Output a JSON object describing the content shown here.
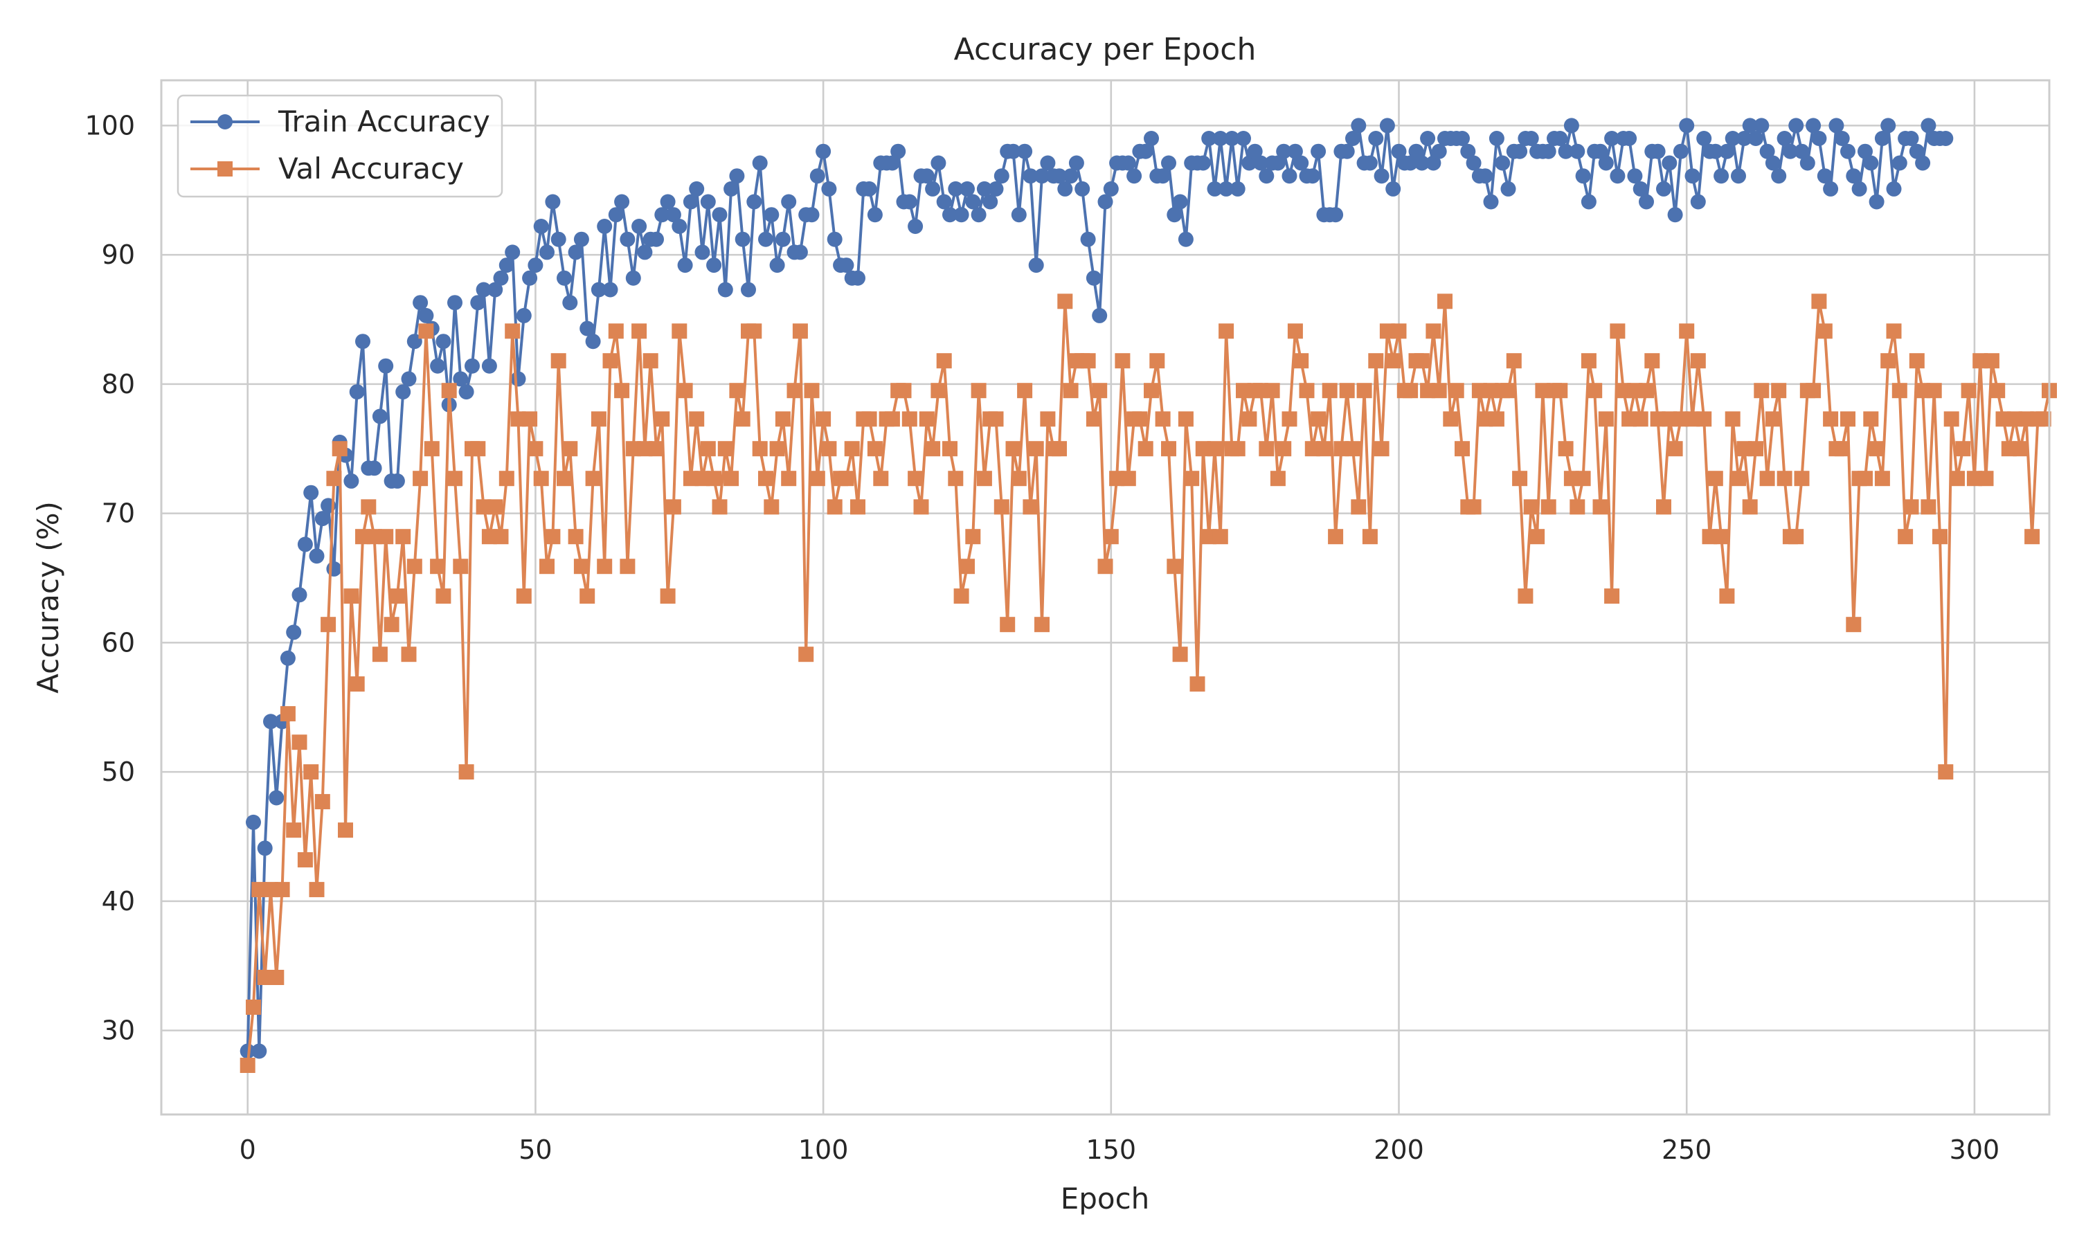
{
  "chart_data": {
    "type": "line",
    "title": "Accuracy per Epoch",
    "xlabel": "Epoch",
    "ylabel": "Accuracy (%)",
    "xlim": [
      -15,
      313
    ],
    "ylim": [
      23.5,
      103.5
    ],
    "xticks": [
      0,
      50,
      100,
      150,
      200,
      250,
      300
    ],
    "yticks": [
      30,
      40,
      50,
      60,
      70,
      80,
      90,
      100
    ],
    "grid": true,
    "legend_position": "top-left",
    "series": [
      {
        "name": "Train Accuracy",
        "color": "#4c72b0",
        "marker": "circle",
        "x_start": 0,
        "values": [
          28.4,
          46.1,
          28.4,
          44.1,
          53.9,
          48.0,
          53.9,
          58.8,
          60.8,
          63.7,
          67.6,
          71.6,
          66.7,
          69.6,
          70.6,
          65.7,
          75.5,
          74.5,
          72.5,
          79.4,
          83.3,
          73.5,
          73.5,
          77.5,
          81.4,
          72.5,
          72.5,
          79.4,
          80.4,
          83.3,
          86.3,
          85.3,
          84.3,
          81.4,
          83.3,
          78.4,
          86.3,
          80.4,
          79.4,
          81.4,
          86.3,
          87.3,
          81.4,
          87.3,
          88.2,
          89.2,
          90.2,
          80.4,
          85.3,
          88.2,
          89.2,
          92.2,
          90.2,
          94.1,
          91.2,
          88.2,
          86.3,
          90.2,
          91.2,
          84.3,
          83.3,
          87.3,
          92.2,
          87.3,
          93.1,
          94.1,
          91.2,
          88.2,
          92.2,
          90.2,
          91.2,
          91.2,
          93.1,
          94.1,
          93.1,
          92.2,
          89.2,
          94.1,
          95.1,
          90.2,
          94.1,
          89.2,
          93.1,
          87.3,
          95.1,
          96.1,
          91.2,
          87.3,
          94.1,
          97.1,
          91.2,
          93.1,
          89.2,
          91.2,
          94.1,
          90.2,
          90.2,
          93.1,
          93.1,
          96.1,
          98.0,
          95.1,
          91.2,
          89.2,
          89.2,
          88.2,
          88.2,
          95.1,
          95.1,
          93.1,
          97.1,
          97.1,
          97.1,
          98.0,
          94.1,
          94.1,
          92.2,
          96.1,
          96.1,
          95.1,
          97.1,
          94.1,
          93.1,
          95.1,
          93.1,
          95.1,
          94.1,
          93.1,
          95.1,
          94.1,
          95.1,
          96.1,
          98.0,
          98.0,
          93.1,
          98.0,
          96.1,
          89.2,
          96.1,
          97.1,
          96.1,
          96.1,
          95.1,
          96.1,
          97.1,
          95.1,
          91.2,
          88.2,
          85.3,
          94.1,
          95.1,
          97.1,
          97.1,
          97.1,
          96.1,
          98.0,
          98.0,
          99.0,
          96.1,
          96.1,
          97.1,
          93.1,
          94.1,
          91.2,
          97.1,
          97.1,
          97.1,
          99.0,
          95.1,
          99.0,
          95.1,
          99.0,
          95.1,
          99.0,
          97.1,
          98.0,
          97.1,
          96.1,
          97.1,
          97.1,
          98.0,
          96.1,
          98.0,
          97.1,
          96.1,
          96.1,
          98.0,
          93.1,
          93.1,
          93.1,
          98.0,
          98.0,
          99.0,
          100.0,
          97.1,
          97.1,
          99.0,
          96.1,
          100.0,
          95.1,
          98.0,
          97.1,
          97.1,
          98.0,
          97.1,
          99.0,
          97.1,
          98.0,
          99.0,
          99.0,
          99.0,
          99.0,
          98.0,
          97.1,
          96.1,
          96.1,
          94.1,
          99.0,
          97.1,
          95.1,
          98.0,
          98.0,
          99.0,
          99.0,
          98.0,
          98.0,
          98.0,
          99.0,
          99.0,
          98.0,
          100.0,
          98.0,
          96.1,
          94.1,
          98.0,
          98.0,
          97.1,
          99.0,
          96.1,
          99.0,
          99.0,
          96.1,
          95.1,
          94.1,
          98.0,
          98.0,
          95.1,
          97.1,
          93.1,
          98.0,
          100.0,
          96.1,
          94.1,
          99.0,
          98.0,
          98.0,
          96.1,
          98.0,
          99.0,
          96.1,
          99.0,
          100.0,
          99.0,
          100.0,
          98.0,
          97.1,
          96.1,
          99.0,
          98.0,
          100.0,
          98.0,
          97.1,
          100.0,
          99.0,
          96.1,
          95.1,
          100.0,
          99.0,
          98.0,
          96.1,
          95.1,
          98.0,
          97.1,
          94.1,
          99.0,
          100.0,
          95.1,
          97.1,
          99.0,
          99.0,
          98.0,
          97.1,
          100.0,
          99.0,
          99.0,
          99.0
        ]
      },
      {
        "name": "Val Accuracy",
        "color": "#dd8452",
        "marker": "square",
        "x_start": 0,
        "values": [
          27.3,
          31.8,
          40.9,
          34.1,
          40.9,
          34.1,
          40.9,
          54.5,
          45.5,
          52.3,
          43.2,
          50.0,
          40.9,
          47.7,
          61.4,
          72.7,
          75.0,
          45.5,
          63.6,
          56.8,
          68.2,
          70.5,
          68.2,
          59.1,
          68.2,
          61.4,
          63.6,
          68.2,
          59.1,
          65.9,
          72.7,
          84.1,
          75.0,
          65.9,
          63.6,
          79.5,
          72.7,
          65.9,
          50.0,
          75.0,
          75.0,
          70.5,
          68.2,
          70.5,
          68.2,
          72.7,
          84.1,
          77.3,
          63.6,
          77.3,
          75.0,
          72.7,
          65.9,
          68.2,
          81.8,
          72.7,
          75.0,
          68.2,
          65.9,
          63.6,
          72.7,
          77.3,
          65.9,
          81.8,
          84.1,
          79.5,
          65.9,
          75.0,
          84.1,
          75.0,
          81.8,
          75.0,
          77.3,
          63.6,
          70.5,
          84.1,
          79.5,
          72.7,
          77.3,
          72.7,
          75.0,
          72.7,
          70.5,
          75.0,
          72.7,
          79.5,
          77.3,
          84.1,
          84.1,
          75.0,
          72.7,
          70.5,
          75.0,
          77.3,
          72.7,
          79.5,
          84.1,
          59.1,
          79.5,
          72.7,
          77.3,
          75.0,
          70.5,
          72.7,
          72.7,
          75.0,
          70.5,
          77.3,
          77.3,
          75.0,
          72.7,
          77.3,
          77.3,
          79.5,
          79.5,
          77.3,
          72.7,
          70.5,
          77.3,
          75.0,
          79.5,
          81.8,
          75.0,
          72.7,
          63.6,
          65.9,
          68.2,
          79.5,
          72.7,
          77.3,
          77.3,
          70.5,
          61.4,
          75.0,
          72.7,
          79.5,
          70.5,
          75.0,
          61.4,
          77.3,
          75.0,
          75.0,
          86.4,
          79.5,
          81.8,
          81.8,
          81.8,
          77.3,
          79.5,
          65.9,
          68.2,
          72.7,
          81.8,
          72.7,
          77.3,
          77.3,
          75.0,
          79.5,
          81.8,
          77.3,
          75.0,
          65.9,
          59.1,
          77.3,
          72.7,
          56.8,
          75.0,
          68.2,
          75.0,
          68.2,
          84.1,
          75.0,
          75.0,
          79.5,
          77.3,
          79.5,
          79.5,
          75.0,
          79.5,
          72.7,
          75.0,
          77.3,
          84.1,
          81.8,
          79.5,
          75.0,
          77.3,
          75.0,
          79.5,
          68.2,
          75.0,
          79.5,
          75.0,
          70.5,
          79.5,
          68.2,
          81.8,
          75.0,
          84.1,
          81.8,
          84.1,
          79.5,
          79.5,
          81.8,
          81.8,
          79.5,
          84.1,
          79.5,
          86.4,
          77.3,
          79.5,
          75.0,
          70.5,
          70.5,
          79.5,
          77.3,
          79.5,
          77.3,
          79.5,
          79.5,
          81.8,
          72.7,
          63.6,
          70.5,
          68.2,
          79.5,
          70.5,
          79.5,
          79.5,
          75.0,
          72.7,
          70.5,
          72.7,
          81.8,
          79.5,
          70.5,
          77.3,
          63.6,
          84.1,
          79.5,
          77.3,
          79.5,
          77.3,
          79.5,
          81.8,
          77.3,
          70.5,
          77.3,
          75.0,
          77.3,
          84.1,
          77.3,
          81.8,
          77.3,
          68.2,
          72.7,
          68.2,
          63.6,
          77.3,
          72.7,
          75.0,
          70.5,
          75.0,
          79.5,
          72.7,
          77.3,
          79.5,
          72.7,
          68.2,
          68.2,
          72.7,
          79.5,
          79.5,
          86.4,
          84.1,
          77.3,
          75.0,
          75.0,
          77.3,
          61.4,
          72.7,
          72.7,
          77.3,
          75.0,
          72.7,
          81.8,
          84.1,
          79.5,
          68.2,
          70.5,
          81.8,
          79.5,
          70.5,
          79.5,
          68.2,
          50.0,
          77.3,
          72.7,
          75.0,
          79.5,
          72.7,
          81.8,
          72.7,
          81.8,
          79.5,
          77.3,
          75.0,
          77.3,
          75.0,
          77.3,
          68.2,
          77.3,
          77.3,
          79.5
        ]
      }
    ]
  }
}
